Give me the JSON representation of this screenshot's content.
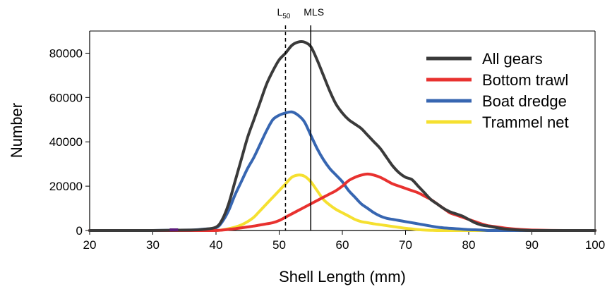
{
  "chart_data": {
    "type": "line",
    "title": "",
    "xlabel": "Shell Length (mm)",
    "ylabel": "Number",
    "xlim": [
      20,
      100
    ],
    "ylim": [
      0,
      90000
    ],
    "x_ticks": [
      20,
      30,
      40,
      50,
      60,
      70,
      80,
      90,
      100
    ],
    "x_tick_labels": [
      "20",
      "30",
      "40",
      "50",
      "60",
      "70",
      "80",
      "90",
      "100"
    ],
    "y_ticks": [
      0,
      20000,
      40000,
      60000,
      80000
    ],
    "y_tick_labels": [
      "0",
      "20000",
      "40000",
      "60000",
      "80000"
    ],
    "grid": false,
    "legend_position": "top-right",
    "reference_lines": [
      {
        "label_main": "L",
        "label_sub": "50",
        "x": 51,
        "style": "dashed"
      },
      {
        "label_main": "MLS",
        "label_sub": "",
        "x": 55,
        "style": "solid"
      }
    ],
    "x": [
      20,
      30,
      36,
      38,
      40,
      41,
      42,
      43,
      44,
      45,
      46,
      47,
      48,
      49,
      50,
      51,
      52,
      53,
      54,
      55,
      56,
      57,
      58,
      59,
      60,
      61,
      62,
      63,
      64,
      65,
      66,
      67,
      68,
      69,
      70,
      71,
      72,
      73,
      74,
      75,
      76,
      77,
      78,
      79,
      80,
      81,
      82,
      83,
      84,
      85,
      86,
      88,
      90,
      95,
      100
    ],
    "series": [
      {
        "name": "All gears",
        "color": "#3a3a3a",
        "values": [
          0,
          0,
          200,
          500,
          1500,
          5000,
          12000,
          22000,
          32000,
          42000,
          50000,
          58000,
          66000,
          72000,
          77000,
          80000,
          83500,
          85000,
          85000,
          83000,
          77000,
          70000,
          63000,
          57000,
          53000,
          50000,
          48000,
          46000,
          43000,
          40000,
          37000,
          33000,
          29000,
          26000,
          24000,
          23000,
          20000,
          17000,
          14000,
          12000,
          10000,
          8500,
          7500,
          6500,
          5000,
          3500,
          2500,
          2000,
          1500,
          1000,
          600,
          200,
          0,
          0,
          0
        ]
      },
      {
        "name": "Bottom trawl",
        "color": "#e8312f",
        "values": [
          0,
          0,
          0,
          0,
          0,
          200,
          500,
          800,
          1200,
          1600,
          2000,
          2500,
          3000,
          3500,
          4500,
          6000,
          7500,
          9000,
          10500,
          12000,
          13500,
          15000,
          16500,
          18000,
          20000,
          22500,
          24000,
          25000,
          25500,
          25000,
          24000,
          22500,
          21000,
          20000,
          19000,
          18000,
          17000,
          15500,
          14000,
          12000,
          10000,
          8000,
          7000,
          6000,
          5000,
          4000,
          3000,
          2200,
          1800,
          1400,
          1000,
          500,
          200,
          0,
          0
        ]
      },
      {
        "name": "Boat dredge",
        "color": "#3766b1",
        "values": [
          0,
          0,
          200,
          600,
          1200,
          4000,
          9000,
          16000,
          22000,
          28000,
          33000,
          39000,
          45000,
          50000,
          52000,
          53000,
          53500,
          52000,
          49000,
          43000,
          37000,
          32000,
          28000,
          25000,
          22000,
          18000,
          15000,
          12000,
          10000,
          8000,
          6500,
          5500,
          5000,
          4500,
          4000,
          3500,
          3000,
          2500,
          2000,
          1500,
          1200,
          1000,
          800,
          600,
          400,
          300,
          200,
          0,
          0,
          0,
          0,
          0,
          0,
          0,
          0
        ]
      },
      {
        "name": "Trammel net",
        "color": "#f5e030",
        "values": [
          0,
          0,
          0,
          0,
          0,
          300,
          800,
          1500,
          2500,
          4000,
          6000,
          9000,
          12000,
          15000,
          18000,
          21000,
          24000,
          25000,
          24500,
          22000,
          18000,
          14000,
          11500,
          9500,
          8000,
          6500,
          5000,
          4000,
          3500,
          3000,
          2600,
          2200,
          1800,
          1400,
          1000,
          700,
          400,
          200,
          100,
          0,
          0,
          0,
          0,
          0,
          0,
          0,
          0,
          0,
          0,
          0,
          0,
          0,
          0,
          0,
          0
        ]
      }
    ]
  },
  "styles": {
    "axis_color": "#000000",
    "marker_color": "#5a1a7a",
    "marker_x": 33
  }
}
